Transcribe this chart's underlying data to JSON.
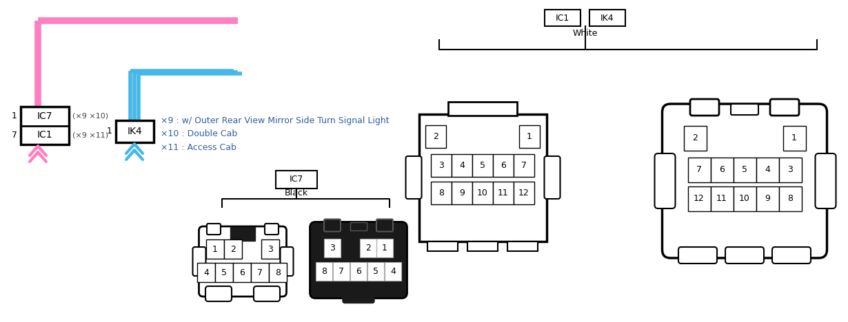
{
  "bg": "#ffffff",
  "pink": "#FF80C0",
  "blue": "#45B8E8",
  "black": "#000000",
  "dark": "#1a1a1a",
  "text_note": "#3060A0",
  "fig_w": 12.3,
  "fig_h": 4.68,
  "dpi": 100,
  "notes": [
    "×9 : w/ Outer Rear View Mirror Side Turn Signal Light",
    "×10 : Double Cab",
    "×11 : Access Cab"
  ],
  "ic7_label": "IC7",
  "ic1_label": "IC1",
  "ik4_label": "IK4",
  "white_label": "White",
  "black_label": "Black"
}
